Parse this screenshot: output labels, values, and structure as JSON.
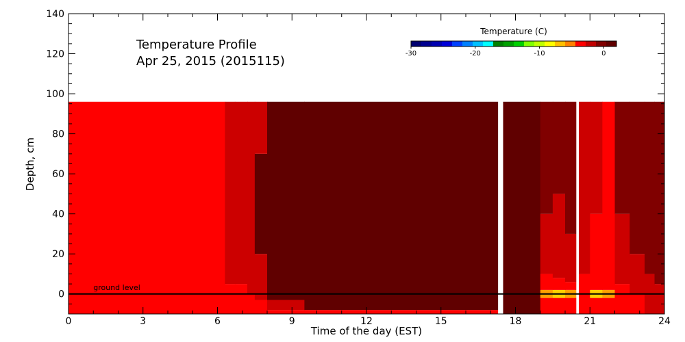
{
  "chart_data": {
    "type": "heatmap",
    "title": "Temperature Profile",
    "subtitle": "Apr 25, 2015 (2015115)",
    "xlabel": "Time of the day (EST)",
    "ylabel": "Depth, cm",
    "xlim": [
      0,
      24
    ],
    "ylim": [
      -10,
      140
    ],
    "x_ticks": [
      "0",
      "3",
      "6",
      "9",
      "12",
      "15",
      "18",
      "21",
      "24"
    ],
    "y_ticks": [
      "0",
      "20",
      "40",
      "60",
      "80",
      "100",
      "120",
      "140"
    ],
    "data_depth_range": [
      -10,
      96
    ],
    "annotation": {
      "text": "ground level",
      "x": 1.0,
      "y": 2
    },
    "ground_level_depth": 0,
    "colorbar": {
      "title": "Temperature (C)",
      "range": [
        -30,
        2
      ],
      "ticks": [
        "-30",
        "-20",
        "-10",
        "0"
      ],
      "colors": [
        "#000070",
        "#000090",
        "#0000b0",
        "#0000d8",
        "#0040ff",
        "#0080ff",
        "#00c0ff",
        "#00ffff",
        "#008000",
        "#00a000",
        "#00d000",
        "#80ff00",
        "#c0ff00",
        "#ffff00",
        "#ffc000",
        "#ff8000",
        "#ff0000",
        "#c00000",
        "#800000",
        "#600000"
      ]
    },
    "missing_data": [
      [
        17.3,
        17.5
      ],
      [
        20.45,
        20.55
      ]
    ],
    "time_bands": [
      {
        "x0": 0.0,
        "x1": 6.3,
        "profile": [
          [
            "#ff0000",
            -10,
            96
          ]
        ]
      },
      {
        "x0": 6.3,
        "x1": 6.7,
        "profile": [
          [
            "#ff0000",
            -10,
            5
          ],
          [
            "#cc0000",
            5,
            96
          ]
        ]
      },
      {
        "x0": 6.7,
        "x1": 7.2,
        "profile": [
          [
            "#ff0000",
            -10,
            5
          ],
          [
            "#cc0000",
            5,
            96
          ]
        ]
      },
      {
        "x0": 7.2,
        "x1": 7.5,
        "profile": [
          [
            "#ff0000",
            -10,
            0
          ],
          [
            "#cc0000",
            0,
            96
          ]
        ]
      },
      {
        "x0": 7.5,
        "x1": 8.0,
        "profile": [
          [
            "#ff0000",
            -10,
            -3
          ],
          [
            "#cc0000",
            -3,
            20
          ],
          [
            "#600000",
            20,
            70
          ],
          [
            "#cc0000",
            70,
            96
          ]
        ]
      },
      {
        "x0": 8.0,
        "x1": 9.5,
        "profile": [
          [
            "#ff0000",
            -10,
            -8
          ],
          [
            "#cc0000",
            -8,
            -3
          ],
          [
            "#600000",
            -3,
            96
          ]
        ]
      },
      {
        "x0": 9.5,
        "x1": 17.3,
        "profile": [
          [
            "#ff0000",
            -10,
            -8
          ],
          [
            "#600000",
            -8,
            96
          ]
        ]
      },
      {
        "x0": 17.5,
        "x1": 19.0,
        "profile": [
          [
            "#600000",
            -10,
            96
          ]
        ]
      },
      {
        "x0": 19.0,
        "x1": 19.5,
        "profile": [
          [
            "#ff0000",
            -10,
            -2
          ],
          [
            "#ffa000",
            -2,
            2
          ],
          [
            "#ff0000",
            2,
            10
          ],
          [
            "#cc0000",
            10,
            40
          ],
          [
            "#800000",
            40,
            96
          ]
        ]
      },
      {
        "x0": 19.5,
        "x1": 20.0,
        "profile": [
          [
            "#ff0000",
            -10,
            -2
          ],
          [
            "#ffd000",
            -2,
            2
          ],
          [
            "#ff0000",
            2,
            8
          ],
          [
            "#cc0000",
            8,
            50
          ],
          [
            "#800000",
            50,
            96
          ]
        ]
      },
      {
        "x0": 20.0,
        "x1": 20.45,
        "profile": [
          [
            "#ff0000",
            -10,
            -2
          ],
          [
            "#ffa000",
            -2,
            2
          ],
          [
            "#ff0000",
            2,
            6
          ],
          [
            "#cc0000",
            6,
            30
          ],
          [
            "#800000",
            30,
            96
          ]
        ]
      },
      {
        "x0": 20.55,
        "x1": 21.0,
        "profile": [
          [
            "#ff0000",
            -10,
            10
          ],
          [
            "#cc0000",
            10,
            96
          ]
        ]
      },
      {
        "x0": 21.0,
        "x1": 21.5,
        "profile": [
          [
            "#ff0000",
            -10,
            -2
          ],
          [
            "#ffd000",
            -2,
            2
          ],
          [
            "#ff0000",
            2,
            40
          ],
          [
            "#cc0000",
            40,
            96
          ]
        ]
      },
      {
        "x0": 21.5,
        "x1": 22.0,
        "profile": [
          [
            "#ff0000",
            -10,
            -2
          ],
          [
            "#ffa000",
            -2,
            2
          ],
          [
            "#ff0000",
            2,
            96
          ]
        ]
      },
      {
        "x0": 22.0,
        "x1": 22.6,
        "profile": [
          [
            "#ff0000",
            -10,
            5
          ],
          [
            "#cc0000",
            5,
            40
          ],
          [
            "#800000",
            40,
            96
          ]
        ]
      },
      {
        "x0": 22.6,
        "x1": 23.2,
        "profile": [
          [
            "#ff0000",
            -10,
            0
          ],
          [
            "#cc0000",
            0,
            20
          ],
          [
            "#800000",
            20,
            96
          ]
        ]
      },
      {
        "x0": 23.2,
        "x1": 23.6,
        "profile": [
          [
            "#cc0000",
            -10,
            10
          ],
          [
            "#800000",
            10,
            96
          ]
        ]
      },
      {
        "x0": 23.6,
        "x1": 24.0,
        "profile": [
          [
            "#cc0000",
            -10,
            5
          ],
          [
            "#800000",
            5,
            96
          ]
        ]
      }
    ]
  }
}
